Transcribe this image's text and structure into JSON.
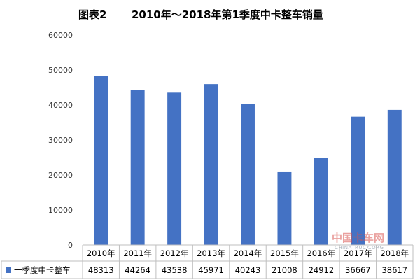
{
  "chart_data": {
    "type": "bar",
    "title_label": "图表2",
    "title": "2010年～2018年第1季度中卡整车销量",
    "categories": [
      "2010年",
      "2011年",
      "2012年",
      "2013年",
      "2014年",
      "2015年",
      "2016年",
      "2017年",
      "2018年"
    ],
    "series": [
      {
        "name": "一季度中卡整车",
        "values": [
          48313,
          44264,
          43538,
          45971,
          40243,
          21008,
          24912,
          36667,
          38617
        ],
        "color": "#4472C4"
      }
    ],
    "ylim": [
      0,
      60000
    ],
    "yticks": [
      0,
      10000,
      20000,
      30000,
      40000,
      50000,
      60000
    ],
    "yticks_labels": [
      "0",
      "10000",
      "20000",
      "30000",
      "40000",
      "50000",
      "60000"
    ],
    "grid": false,
    "legend": "data-table-left"
  },
  "watermark": {
    "cn": "中国卡车网",
    "en": "CHINATRUCK.ORG"
  }
}
